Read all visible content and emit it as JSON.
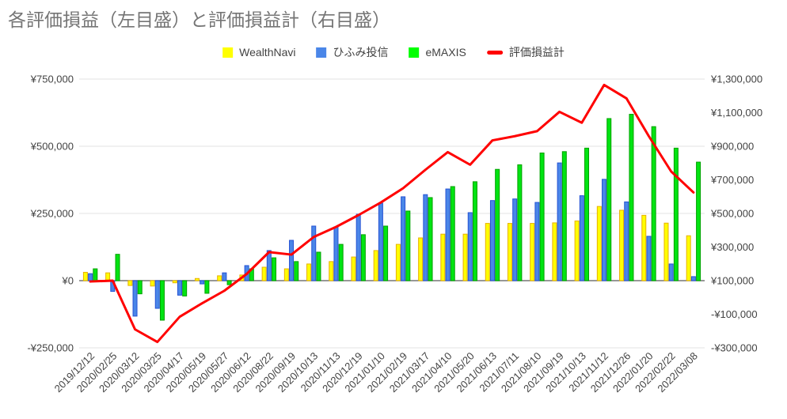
{
  "title": "各評価損益（左目盛）と評価損益計（右目盛）",
  "legend": [
    {
      "key": "wealthnavi",
      "label": "WealthNavi",
      "color": "#ffff00",
      "type": "box"
    },
    {
      "key": "hifumi",
      "label": "ひふみ投信",
      "color": "#4a86e8",
      "type": "box"
    },
    {
      "key": "emaxis",
      "label": "eMAXIS",
      "color": "#00ff00",
      "type": "box"
    },
    {
      "key": "total",
      "label": "評価損益計",
      "color": "#ff0000",
      "type": "line"
    }
  ],
  "chart_data": {
    "type": "bar+line combo, dual axis",
    "title": "各評価損益（左目盛）と評価損益計（右目盛）",
    "categories": [
      "2019/12/12",
      "2020/02/25",
      "2020/03/12",
      "2020/03/25",
      "2020/04/17",
      "2020/05/19",
      "2020/05/27",
      "2020/06/12",
      "2020/08/22",
      "2020/09/19",
      "2020/10/13",
      "2020/11/13",
      "2020/12/19",
      "2021/01/10",
      "2021/02/19",
      "2021/03/17",
      "2021/04/10",
      "2021/05/20",
      "2021/06/13",
      "2021/07/11",
      "2021/08/10",
      "2021/09/19",
      "2021/10/13",
      "2021/11/12",
      "2021/12/26",
      "2022/01/20",
      "2022/02/22",
      "2022/03/08"
    ],
    "series": [
      {
        "key": "wealthnavi",
        "name": "WealthNavi",
        "type": "bar",
        "axis": "left",
        "color": "#ffff00",
        "stroke": "#e8b000",
        "values": [
          31000,
          29000,
          -18000,
          -20000,
          -8000,
          8000,
          18000,
          21000,
          50000,
          44000,
          62000,
          71000,
          88000,
          112000,
          135000,
          159000,
          173000,
          173000,
          213000,
          213000,
          213000,
          215000,
          222000,
          276000,
          262000,
          243000,
          214000,
          167000
        ]
      },
      {
        "key": "hifumi",
        "name": "ひふみ投信",
        "type": "bar",
        "axis": "left",
        "color": "#4a86e8",
        "stroke": "#2653d4",
        "values": [
          26000,
          -40000,
          -132000,
          -103000,
          -54000,
          -12000,
          29000,
          56000,
          112000,
          150000,
          203000,
          200000,
          247000,
          288000,
          312000,
          320000,
          341000,
          253000,
          298000,
          304000,
          291000,
          438000,
          316000,
          377000,
          293000,
          165000,
          62000,
          15000
        ]
      },
      {
        "key": "emaxis",
        "name": "eMAXIS",
        "type": "bar",
        "axis": "left",
        "color": "#00e412",
        "stroke": "#00a000",
        "values": [
          44000,
          98000,
          -49000,
          -147000,
          -57000,
          -47000,
          -15000,
          44000,
          85000,
          71000,
          106000,
          135000,
          171000,
          203000,
          259000,
          309000,
          350000,
          368000,
          414000,
          431000,
          475000,
          480000,
          493000,
          603000,
          619000,
          573000,
          493000,
          441000
        ]
      },
      {
        "key": "total",
        "name": "評価損益計",
        "type": "line",
        "axis": "right",
        "color": "#ff0000",
        "values": [
          95000,
          100000,
          -190000,
          -265000,
          -115000,
          -35000,
          40000,
          140000,
          270000,
          255000,
          360000,
          420000,
          490000,
          565000,
          650000,
          760000,
          865000,
          790000,
          935000,
          960000,
          990000,
          1105000,
          1040000,
          1265000,
          1185000,
          960000,
          750000,
          625000
        ]
      }
    ],
    "left_axis": {
      "range": [
        -250000,
        750000
      ],
      "ticks": [
        {
          "value": 750000,
          "label": "¥750,000"
        },
        {
          "value": 500000,
          "label": "¥500,000"
        },
        {
          "value": 250000,
          "label": "¥250,000"
        },
        {
          "value": 0,
          "label": "¥0"
        },
        {
          "value": -250000,
          "label": "-¥250,000"
        }
      ]
    },
    "right_axis": {
      "range": [
        -300000,
        1300000
      ],
      "ticks": [
        {
          "value": 1300000,
          "label": "¥1,300,000"
        },
        {
          "value": 1100000,
          "label": "¥1,100,000"
        },
        {
          "value": 900000,
          "label": "¥900,000"
        },
        {
          "value": 700000,
          "label": "¥700,000"
        },
        {
          "value": 500000,
          "label": "¥500,000"
        },
        {
          "value": 300000,
          "label": "¥300,000"
        },
        {
          "value": 100000,
          "label": "¥100,000"
        },
        {
          "value": -100000,
          "label": "-¥100,000"
        },
        {
          "value": -300000,
          "label": "-¥300,000"
        }
      ]
    },
    "grid": "horizontal gridlines at left-axis ticks only, dark zero line",
    "legend_position": "top-center"
  },
  "colors": {
    "title": "#757575",
    "axis_text": "#424242",
    "gridline": "#e3e3e3",
    "zero_line": "#757575",
    "background": "#ffffff"
  }
}
